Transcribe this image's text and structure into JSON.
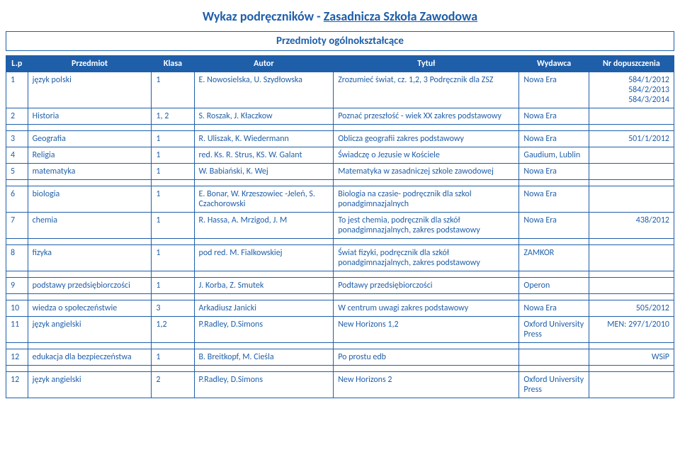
{
  "title_part1": "Wykaz podręczników  - ",
  "title_part2": "Zasadnicza Szkoła Zawodowa",
  "subtitle": "Przedmioty ogólnokształcące",
  "headers": {
    "lp": "L.p",
    "subj": "Przedmiot",
    "klasa": "Klasa",
    "autor": "Autor",
    "tytul": "Tytuł",
    "wydawca": "Wydawca",
    "nr": "Nr dopuszczenia"
  },
  "rows": [
    {
      "lp": "1",
      "subj": "język polski",
      "klasa": "1",
      "autor": "E. Nowosielska, U. Szydłowska",
      "tytul": "Zrozumieć świat, cz. 1,2, 3 Podręcznik dla ZSZ",
      "wyd": "Nowa Era",
      "nr": "584/1/2012\n584/2/2013\n584/3/2014"
    },
    {
      "lp": "2",
      "subj": "Historia",
      "klasa": "1, 2",
      "autor": "S. Roszak, J. Kłaczkow",
      "tytul": "Poznać przeszłość - wiek XX zakres podstawowy",
      "wyd": "Nowa Era",
      "nr": ""
    },
    {
      "lp": "3",
      "subj": "Geografia",
      "klasa": "1",
      "autor": "R. Uliszak, K. Wiedermann",
      "tytul": "Oblicza geografii zakres podstawowy",
      "wyd": "Nowa Era",
      "nr": "501/1/2012"
    },
    {
      "lp": "4",
      "subj": "Religia",
      "klasa": "1",
      "autor": "red. Ks. R. Strus, KS. W. Galant",
      "tytul": "Świadczę o Jezusie w Kościele",
      "wyd": "Gaudium, Lublin",
      "nr": ""
    },
    {
      "lp": "5",
      "subj": "matematyka",
      "klasa": "1",
      "autor": "W. Babiański, K. Wej",
      "tytul": "Matematyka w zasadniczej szkole zawodowej",
      "wyd": "Nowa Era",
      "nr": ""
    },
    {
      "lp": "6",
      "subj": "biologia",
      "klasa": "1",
      "autor": "E. Bonar, W. Krzeszowiec -Jeleń, S. Czachorowski",
      "tytul": "Biologia na czasie- podręcznik dla szkol ponadgimnazjalnych",
      "wyd": "Nowa Era",
      "nr": ""
    },
    {
      "lp": "7",
      "subj": "chemia",
      "klasa": "1",
      "autor": "R. Hassa, A. Mrzigod, J. M",
      "tytul": "To jest chemia, podręcznik dla szkół ponadgimnazjalnych, zakres podstawowy",
      "wyd": "Nowa Era",
      "nr": "438/2012"
    },
    {
      "lp": "8",
      "subj": "fizyka",
      "klasa": "1",
      "autor": "pod red. M. Fialkowskiej",
      "tytul": "Świat fizyki, podręcznik dla szkół ponadgimnazjalnych, zakres podstawowy",
      "wyd": "ZAMKOR",
      "nr": ""
    },
    {
      "lp": "9",
      "subj": "podstawy przedsiębiorczości",
      "klasa": "1",
      "autor": "J. Korba, Z. Smutek",
      "tytul": "Podtawy przedsiębiorczości",
      "wyd": "Operon",
      "nr": ""
    },
    {
      "lp": "10",
      "subj": "wiedza o społeczeństwie",
      "klasa": "3",
      "autor": "Arkadiusz Janicki",
      "tytul": "W centrum uwagi zakres podstawowy",
      "wyd": "Nowa Era",
      "nr": "505/2012"
    },
    {
      "lp": "11",
      "subj": "język angielski",
      "klasa": "1,2",
      "autor": "P.Radley, D.Simons",
      "tytul": "New Horizons 1,2",
      "wyd": "Oxford University Press",
      "nr": "MEN: 297/1/2010"
    },
    {
      "lp": "12",
      "subj": "edukacja dla bezpieczeństwa",
      "klasa": "1",
      "autor": "B. Breitkopf, M. Cieśla",
      "tytul": "Po prostu edb",
      "wyd": "",
      "nr": "WSiP"
    },
    {
      "lp": "12",
      "subj": "język angielski",
      "klasa": "2",
      "autor": "P.Radley, D.Simons",
      "tytul": "New Horizons 2",
      "wyd": "Oxford University Press",
      "nr": ""
    }
  ],
  "spacer_after": [
    1,
    4,
    6,
    7,
    8,
    10,
    11
  ]
}
